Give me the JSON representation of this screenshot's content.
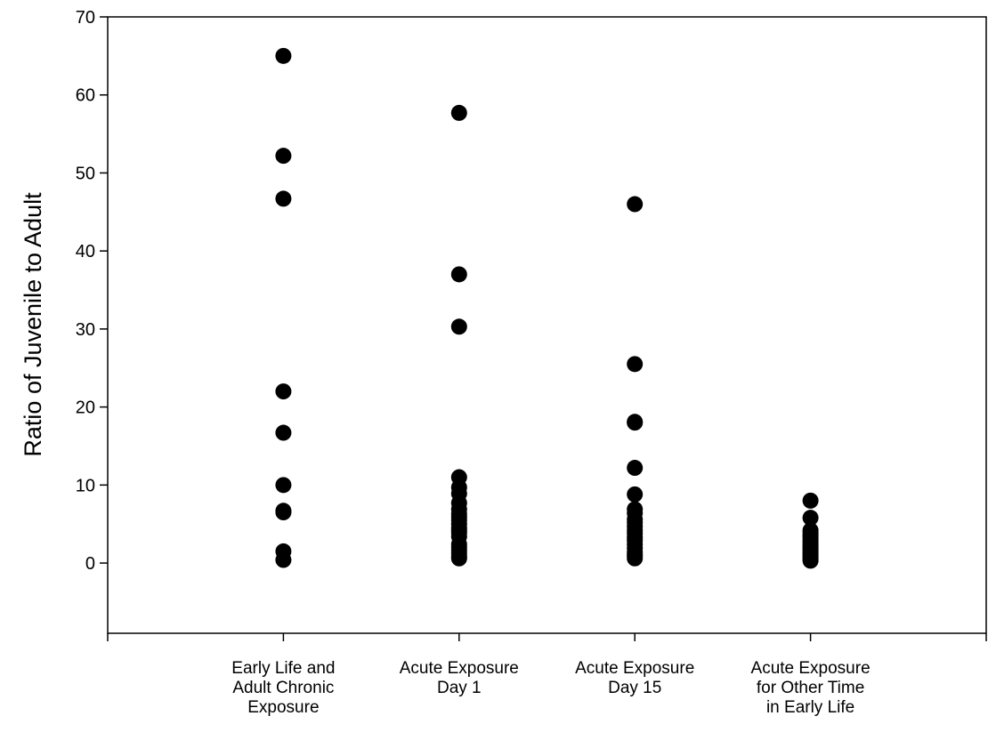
{
  "chart_data": {
    "type": "scatter",
    "title": "",
    "xlabel": "",
    "ylabel": "Ratio of Juvenile to Adult",
    "ylim": [
      -9,
      70
    ],
    "yticks": [
      0,
      10,
      20,
      30,
      40,
      50,
      60,
      70
    ],
    "xlim": [
      0,
      5
    ],
    "grid": false,
    "legend": "none",
    "marker_color": "#000000",
    "categories": [
      [
        "Early Life and",
        "Adult Chronic",
        "Exposure"
      ],
      [
        "Acute Exposure",
        "Day 1"
      ],
      [
        "Acute Exposure",
        "Day 15"
      ],
      [
        "Acute Exposure",
        "for Other Time",
        "in Early Life"
      ]
    ],
    "series": [
      {
        "x": 1,
        "values": [
          65,
          52.2,
          46.7,
          22,
          16.7,
          10,
          6.7,
          6.5,
          1.5,
          0.4
        ]
      },
      {
        "x": 2,
        "values": [
          57.7,
          37,
          30.3,
          11,
          9.7,
          8.9,
          7.7,
          6.9,
          6.3,
          5.9,
          5.5,
          5,
          4.5,
          4.2,
          3.9,
          3.4,
          2.4,
          2,
          1.6,
          1.2,
          0.8,
          0.6
        ]
      },
      {
        "x": 3,
        "values": [
          46,
          25.5,
          18.1,
          18,
          12.2,
          8.8,
          6.9,
          6.4,
          5.6,
          5.2,
          4.7,
          4.2,
          3.8,
          3.3,
          2.9,
          2.4,
          1.9,
          1.4,
          1.1,
          0.9,
          0.6
        ]
      },
      {
        "x": 4,
        "values": [
          8,
          5.8,
          4.2,
          3.9,
          3.6,
          3.4,
          3.1,
          2.8,
          2.6,
          2.3,
          2.1,
          1.9,
          1.7,
          1.5,
          1.3,
          1.1,
          0.9,
          0.7,
          0.5,
          0.3
        ]
      }
    ]
  }
}
